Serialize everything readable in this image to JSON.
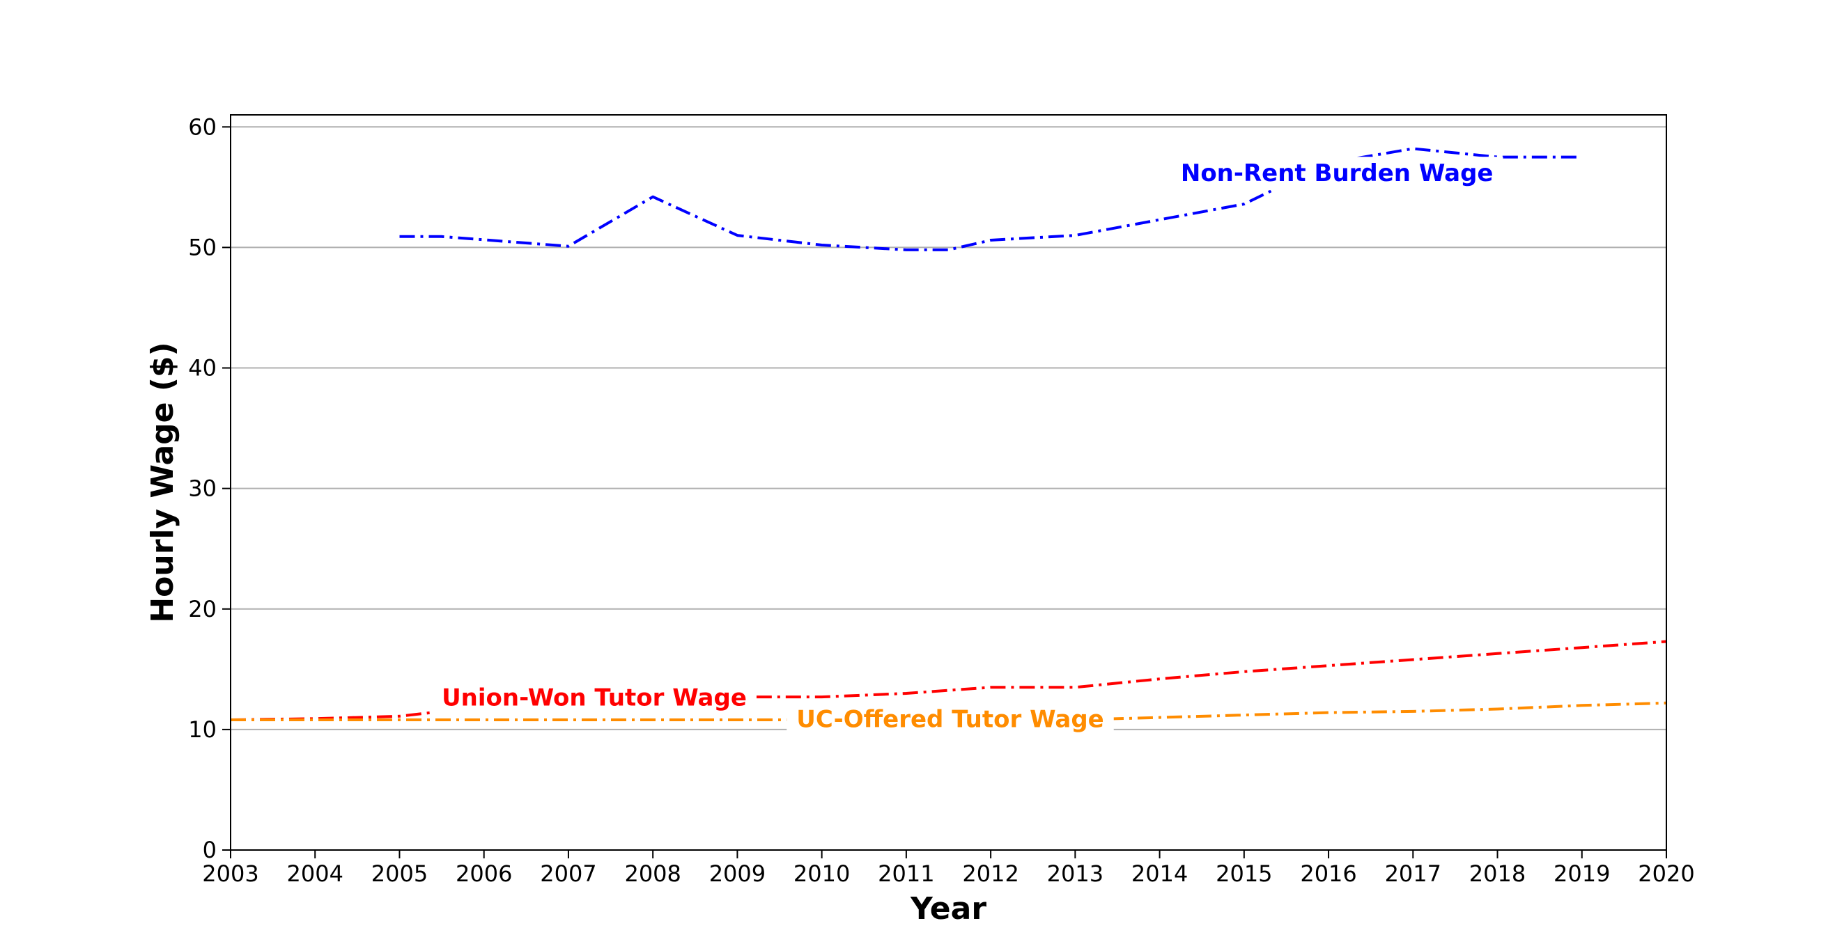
{
  "chart_data": {
    "type": "line",
    "xlabel": "Year",
    "ylabel": "Hourly Wage ($)",
    "xlim": [
      2003,
      2020
    ],
    "ylim": [
      0,
      61
    ],
    "xticks": [
      2003,
      2004,
      2005,
      2006,
      2007,
      2008,
      2009,
      2010,
      2011,
      2012,
      2013,
      2014,
      2015,
      2016,
      2017,
      2018,
      2019,
      2020
    ],
    "yticks": [
      0,
      10,
      20,
      30,
      40,
      50,
      60
    ],
    "grid": "horizontal",
    "line_style": "dashdot",
    "series": [
      {
        "name": "Non-Rent Burden Wage",
        "color": "#0000ff",
        "x": [
          2005,
          2005.5,
          2007,
          2008,
          2009,
          2010,
          2011,
          2011.5,
          2012,
          2013,
          2014,
          2015,
          2016,
          2017,
          2018,
          2019
        ],
        "y": [
          50.9,
          50.9,
          50.1,
          54.2,
          51.0,
          50.2,
          49.8,
          49.8,
          50.6,
          51.0,
          52.3,
          53.6,
          57.0,
          58.2,
          57.5,
          57.5
        ]
      },
      {
        "name": "Union-Won Tutor Wage",
        "color": "#ff0000",
        "x": [
          2003,
          2004,
          2005,
          2006,
          2007,
          2008,
          2009,
          2010,
          2011,
          2012,
          2013,
          2014,
          2015,
          2016,
          2017,
          2018,
          2019,
          2020
        ],
        "y": [
          10.8,
          10.9,
          11.1,
          11.9,
          12.3,
          12.6,
          12.7,
          12.7,
          13.0,
          13.5,
          13.5,
          14.2,
          14.8,
          15.3,
          15.8,
          16.3,
          16.8,
          17.3
        ]
      },
      {
        "name": "UC-Offered Tutor Wage",
        "color": "#ff8c00",
        "x": [
          2003,
          2004,
          2005,
          2006,
          2007,
          2008,
          2009,
          2010,
          2011,
          2012,
          2013,
          2014,
          2015,
          2016,
          2017,
          2018,
          2019,
          2020
        ],
        "y": [
          10.8,
          10.8,
          10.8,
          10.8,
          10.8,
          10.8,
          10.8,
          10.8,
          10.8,
          10.8,
          10.8,
          11.0,
          11.2,
          11.4,
          11.5,
          11.7,
          12.0,
          12.2
        ]
      }
    ]
  }
}
